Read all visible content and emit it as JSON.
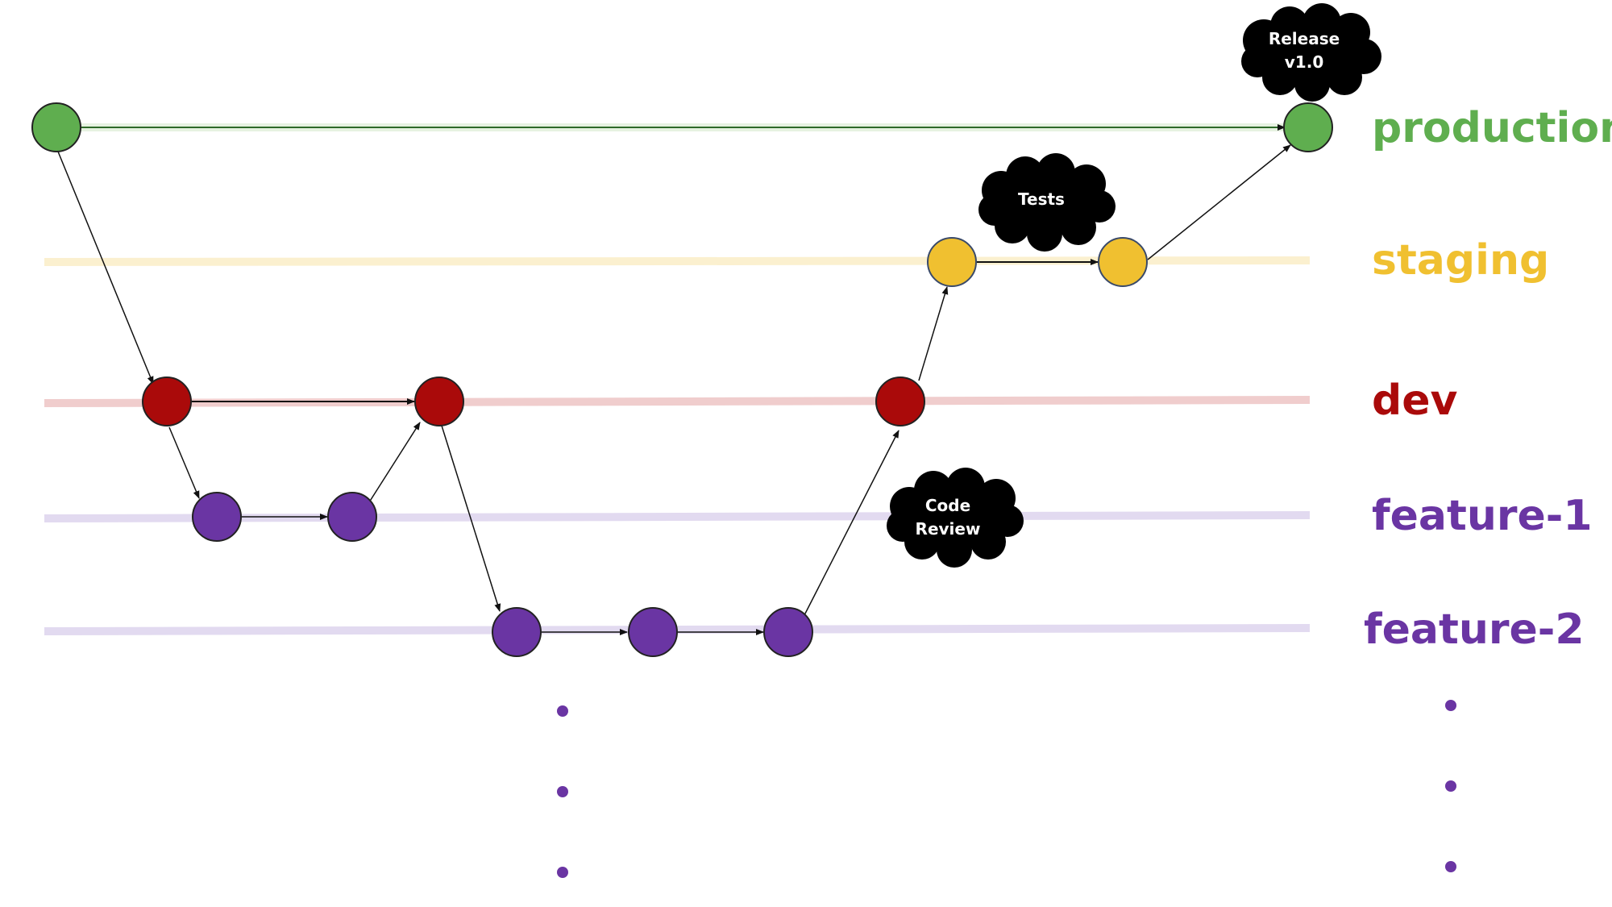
{
  "colors": {
    "production": "#5fae4f",
    "production_lane": "#e6f2e1",
    "staging": "#f0c030",
    "staging_lane": "#fbf0cf",
    "dev": "#aa0a0a",
    "dev_lane": "#f0cdcd",
    "feature": "#6a35a3",
    "feature_lane": "#e2daf0",
    "node_stroke": "#222222",
    "arrow": "#111111",
    "cloud": "#000000",
    "cloud_text": "#ffffff"
  },
  "branches": [
    {
      "id": "production",
      "label": "production",
      "color_key": "production"
    },
    {
      "id": "staging",
      "label": "staging",
      "color_key": "staging"
    },
    {
      "id": "dev",
      "label": "dev",
      "color_key": "dev"
    },
    {
      "id": "feature-1",
      "label": "feature-1",
      "color_key": "feature"
    },
    {
      "id": "feature-2",
      "label": "feature-2",
      "color_key": "feature"
    }
  ],
  "annotations": {
    "release": [
      "Release",
      "v1.0"
    ],
    "tests": [
      "Tests"
    ],
    "code_review": [
      "Code",
      "Review"
    ]
  }
}
